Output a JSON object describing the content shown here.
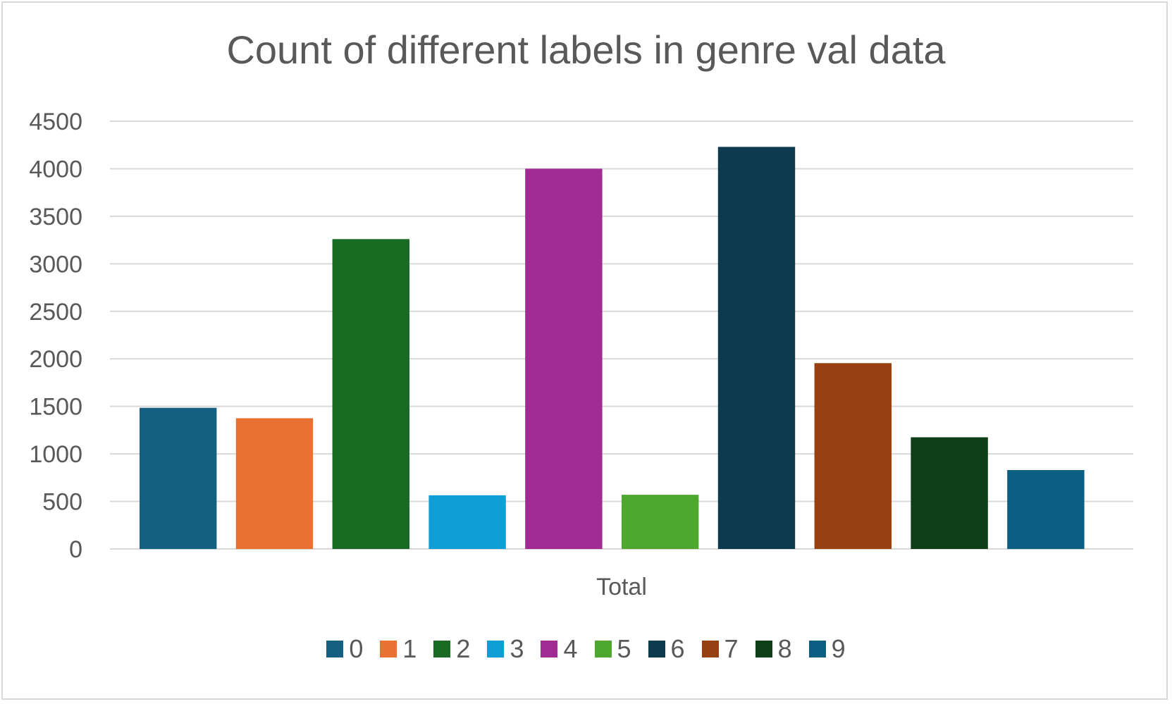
{
  "chart_data": {
    "type": "bar",
    "title": "Count of different labels in genre val data",
    "xlabel": "",
    "ylabel": "",
    "categories": [
      "Total"
    ],
    "category_axis_label": "Total",
    "ylim": [
      0,
      4500
    ],
    "yticks": [
      "0",
      "500",
      "1000",
      "1500",
      "2000",
      "2500",
      "3000",
      "3500",
      "4000",
      "4500"
    ],
    "grid": true,
    "legend_position": "bottom",
    "series": [
      {
        "name": "0",
        "values": [
          1485
        ],
        "color": "#156082"
      },
      {
        "name": "1",
        "values": [
          1375
        ],
        "color": "#e97132"
      },
      {
        "name": "2",
        "values": [
          3260
        ],
        "color": "#196b24"
      },
      {
        "name": "3",
        "values": [
          565
        ],
        "color": "#0f9ed5"
      },
      {
        "name": "4",
        "values": [
          4000
        ],
        "color": "#a02b93"
      },
      {
        "name": "5",
        "values": [
          570
        ],
        "color": "#4ea72e"
      },
      {
        "name": "6",
        "values": [
          4230
        ],
        "color": "#0e3a50"
      },
      {
        "name": "7",
        "values": [
          1955
        ],
        "color": "#974012"
      },
      {
        "name": "8",
        "values": [
          1175
        ],
        "color": "#0f3f18"
      },
      {
        "name": "9",
        "values": [
          830
        ],
        "color": "#0c5f82"
      }
    ]
  }
}
